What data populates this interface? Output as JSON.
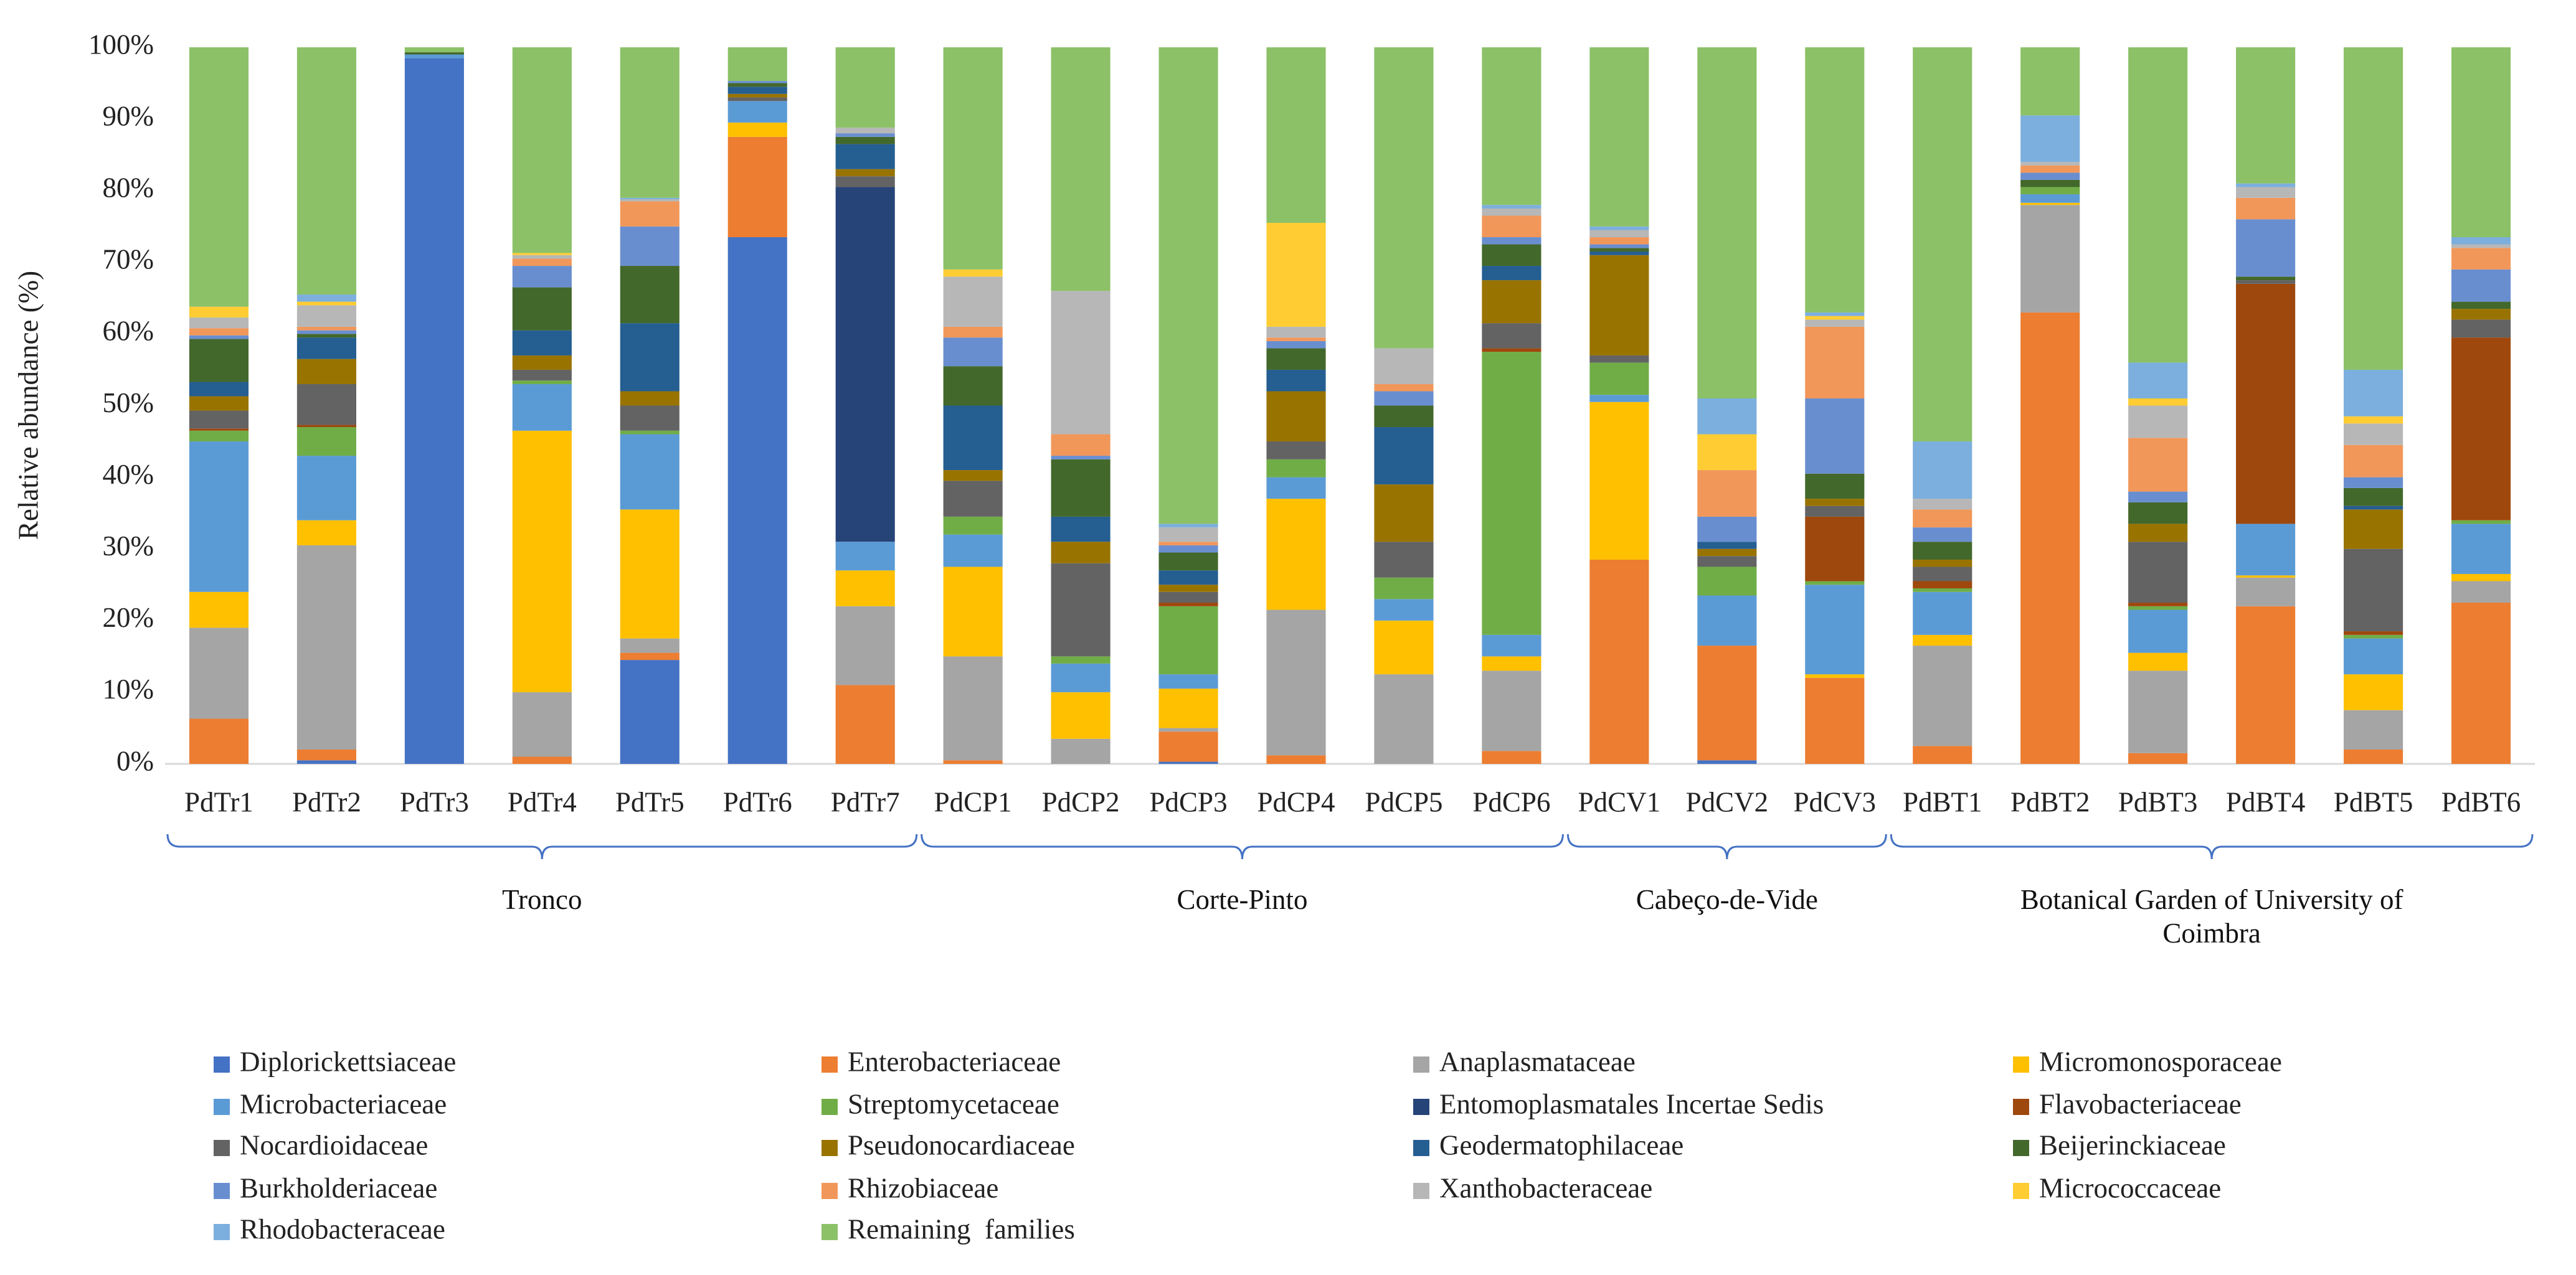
{
  "chart_data": {
    "type": "stacked_bar",
    "y_label": "Relative abundance (%)",
    "categories": [
      "PdTr1",
      "PdTr2",
      "PdTr3",
      "PdTr4",
      "PdTr5",
      "PdTr6",
      "PdTr7",
      "PdCP1",
      "PdCP2",
      "PdCP3",
      "PdCP4",
      "PdCP5",
      "PdCP6",
      "PdCV1",
      "PdCV2",
      "PdCV3",
      "PdBT1",
      "PdBT2",
      "PdBT3",
      "PdBT4",
      "PdBT5",
      "PdBT6"
    ],
    "groups": [
      {
        "label": "Tronco",
        "span": 7
      },
      {
        "label": "Corte-Pinto",
        "span": 6
      },
      {
        "label": "Cabeço-de-Vide",
        "span": 3
      },
      {
        "label": "Botanical Garden of University of Coimbra",
        "span": 6
      }
    ],
    "ylim": [
      0,
      100
    ],
    "yticks": [
      {
        "value": 0,
        "label": "0%"
      },
      {
        "value": 10,
        "label": "10%"
      },
      {
        "value": 20,
        "label": "20%"
      },
      {
        "value": 30,
        "label": "30%"
      },
      {
        "value": 40,
        "label": "40%"
      },
      {
        "value": 50,
        "label": "50%"
      },
      {
        "value": 60,
        "label": "60%"
      },
      {
        "value": 70,
        "label": "70%"
      },
      {
        "value": 80,
        "label": "80%"
      },
      {
        "value": 90,
        "label": "90%"
      },
      {
        "value": 100,
        "label": "100%"
      }
    ],
    "grid": false,
    "legend_position": "bottom",
    "series": [
      {
        "name": "Diplorickettsiaceae",
        "color": "#4472c4",
        "values": [
          0,
          0.5,
          98.5,
          0,
          14.5,
          73.5,
          0,
          0,
          0,
          0.3,
          0,
          0,
          0,
          0,
          0.5,
          0,
          0,
          0,
          0,
          0,
          0,
          0
        ]
      },
      {
        "name": "Enterobacteriaceae",
        "color": "#ed7d31",
        "values": [
          6.3,
          1.5,
          0,
          1,
          1,
          14,
          11,
          0.5,
          0,
          4.2,
          1.2,
          0,
          1.8,
          28.5,
          16,
          12,
          2.5,
          63,
          1.5,
          22,
          2,
          22.5
        ]
      },
      {
        "name": "Anaplasmataceae",
        "color": "#a5a5a5",
        "values": [
          12.7,
          28.5,
          0,
          9,
          2,
          0,
          11,
          14.5,
          3.5,
          0.5,
          20.3,
          12.5,
          11.2,
          0,
          0,
          0,
          14,
          15,
          11.5,
          4,
          5.5,
          3
        ]
      },
      {
        "name": "Micromonosporaceae",
        "color": "#ffc000",
        "values": [
          5,
          3.5,
          0,
          36.5,
          18,
          2,
          5,
          12.5,
          6.5,
          5.5,
          15.5,
          7.5,
          2,
          22,
          0,
          0.5,
          1.5,
          0.3,
          2.5,
          0.3,
          5,
          1
        ]
      },
      {
        "name": "Microbacteriaceae",
        "color": "#5b9bd5",
        "values": [
          21,
          9,
          0.5,
          6.5,
          10.5,
          3,
          4,
          4.5,
          4,
          2,
          3,
          3,
          3,
          1,
          7,
          12.5,
          6,
          1.2,
          6,
          7.2,
          5,
          7
        ]
      },
      {
        "name": "Streptomycetaceae",
        "color": "#70ad47",
        "values": [
          1.5,
          4,
          0,
          0.5,
          0.5,
          0,
          0,
          2.5,
          1,
          9.5,
          2.5,
          3,
          39.5,
          4.5,
          4,
          0.5,
          0.5,
          1,
          0.5,
          0,
          0.5,
          0.5
        ]
      },
      {
        "name": "Entomoplasmatales Incertae Sedis",
        "color": "#264478",
        "values": [
          0,
          0,
          0,
          0,
          0,
          0,
          49.5,
          0,
          0,
          0,
          0,
          0,
          0,
          0,
          0,
          0,
          0,
          0,
          0,
          0,
          0,
          0
        ]
      },
      {
        "name": "Flavobacteriaceae",
        "color": "#9e480e",
        "values": [
          0.3,
          0.3,
          0,
          0,
          0,
          0,
          0,
          0,
          0,
          0.5,
          0,
          0,
          0.5,
          0,
          0,
          9,
          1,
          0,
          0.5,
          33.5,
          0.5,
          25.5
        ]
      },
      {
        "name": "Nocardioidaceae",
        "color": "#636363",
        "values": [
          2.5,
          5.7,
          0,
          1.5,
          3.5,
          0.5,
          1.5,
          5,
          13,
          1.5,
          2.5,
          5,
          3.5,
          1,
          1.5,
          1.5,
          2,
          0,
          8.5,
          0.5,
          11.5,
          2.5
        ]
      },
      {
        "name": "Pseudonocardiaceae",
        "color": "#997300",
        "values": [
          2,
          3.5,
          0,
          2,
          2,
          0.5,
          1,
          1.5,
          3,
          1,
          7,
          8,
          6,
          14,
          1,
          1,
          1,
          0,
          2.5,
          0,
          5.5,
          1.5
        ]
      },
      {
        "name": "Geodermatophilaceae",
        "color": "#255e91",
        "values": [
          2,
          3,
          0,
          3.5,
          9.5,
          1,
          3.5,
          9,
          3.5,
          2,
          3,
          8,
          2,
          0.5,
          1,
          0,
          0,
          0,
          0,
          0,
          0.5,
          0
        ]
      },
      {
        "name": "Beijerinckiaceae",
        "color": "#43682b",
        "values": [
          6,
          0.5,
          0.3,
          6,
          8,
          0.5,
          1,
          5.5,
          8,
          2.5,
          3,
          3,
          3,
          0.5,
          0,
          3.5,
          2.5,
          1,
          3,
          0.5,
          2.5,
          1
        ]
      },
      {
        "name": "Burkholderiaceae",
        "color": "#698ed0",
        "values": [
          0.5,
          0.5,
          0,
          3,
          5.5,
          0.3,
          0.5,
          4,
          0.5,
          1,
          1,
          2,
          1,
          0.5,
          3.5,
          10.5,
          2,
          1,
          1.5,
          8,
          1.5,
          4.5
        ]
      },
      {
        "name": "Rhizobiaceae",
        "color": "#f1975a",
        "values": [
          1,
          0.5,
          0,
          1,
          3.5,
          0,
          0,
          1.5,
          3,
          0.5,
          0.5,
          1,
          3,
          1,
          6.5,
          10,
          2.5,
          1,
          7.5,
          3,
          4.5,
          3
        ]
      },
      {
        "name": "Xanthobacteraceae",
        "color": "#b7b7b7",
        "values": [
          1.5,
          3,
          0,
          0.5,
          0.3,
          0,
          0.8,
          7,
          20,
          2,
          1.5,
          5,
          1,
          1,
          0,
          1,
          1.5,
          0.5,
          4.5,
          1.5,
          3,
          0.5
        ]
      },
      {
        "name": "Micrococcaceae",
        "color": "#ffcd33",
        "values": [
          1.5,
          0.5,
          0,
          0.3,
          0,
          0,
          0,
          1,
          0,
          0,
          14.5,
          0,
          0,
          0,
          5,
          0.5,
          0,
          0,
          1,
          0,
          1,
          0
        ]
      },
      {
        "name": "Rhodobacteraceae",
        "color": "#7cafdd",
        "values": [
          0,
          1,
          0,
          0,
          0.2,
          0,
          0,
          0,
          0,
          0.5,
          0,
          0,
          0.5,
          0.5,
          5,
          0.5,
          8,
          6.5,
          5,
          0.5,
          6.5,
          1
        ]
      },
      {
        "name": "Remaining  families",
        "color": "#8cc168",
        "values": [
          36.2,
          34.5,
          0.7,
          28.7,
          21,
          4.7,
          11.2,
          31,
          34,
          66.5,
          24.5,
          42,
          22,
          25,
          49,
          37,
          55,
          9.5,
          44,
          19,
          45,
          26.5
        ]
      }
    ]
  }
}
